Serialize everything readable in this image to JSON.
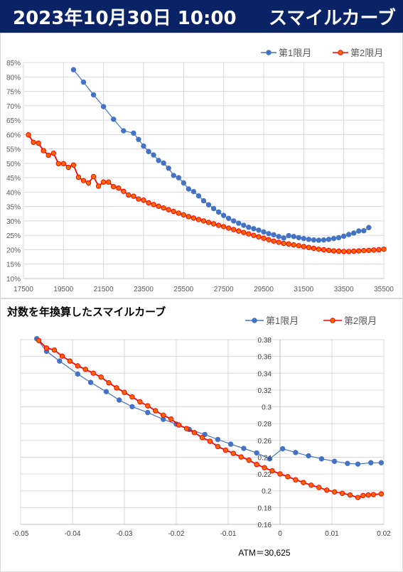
{
  "header": {
    "datetime": "2023年10月30日 10:00",
    "title": "スマイルカーブ"
  },
  "colors": {
    "header_bg": "#0a2366",
    "series1": "#4472c4",
    "series2": "#ff0000",
    "series2_fill": "#ff6a00"
  },
  "chart_data": [
    {
      "type": "line",
      "title": "",
      "xlabel": "",
      "ylabel": "",
      "xlim": [
        17500,
        35500
      ],
      "ylim": [
        10,
        85
      ],
      "x_ticks": [
        "17500",
        "19500",
        "21500",
        "23500",
        "25500",
        "27500",
        "29500",
        "31500",
        "33500",
        "35500"
      ],
      "y_ticks": [
        "10%",
        "15%",
        "20%",
        "25%",
        "30%",
        "35%",
        "40%",
        "45%",
        "50%",
        "55%",
        "60%",
        "65%",
        "70%",
        "75%",
        "80%",
        "85%"
      ],
      "grid": true,
      "legend": "top-right",
      "series": [
        {
          "name": "第1限月",
          "points": [
            [
              20000,
              82.5
            ],
            [
              20500,
              78.2
            ],
            [
              21000,
              73.8
            ],
            [
              21500,
              69.7
            ],
            [
              22000,
              65.3
            ],
            [
              22500,
              61.3
            ],
            [
              23000,
              60.5
            ],
            [
              23250,
              58.3
            ],
            [
              23500,
              56.0
            ],
            [
              23750,
              54.1
            ],
            [
              24000,
              52.9
            ],
            [
              24250,
              51.0
            ],
            [
              24500,
              50.1
            ],
            [
              24750,
              48.3
            ],
            [
              25000,
              45.8
            ],
            [
              25250,
              45.0
            ],
            [
              25500,
              43.2
            ],
            [
              25750,
              41.1
            ],
            [
              26000,
              40.2
            ],
            [
              26250,
              38.7
            ],
            [
              26500,
              37.0
            ],
            [
              26750,
              35.6
            ],
            [
              27000,
              34.3
            ],
            [
              27250,
              33.1
            ],
            [
              27500,
              31.9
            ],
            [
              27750,
              30.9
            ],
            [
              28000,
              30.0
            ],
            [
              28250,
              29.2
            ],
            [
              28500,
              28.5
            ],
            [
              28750,
              27.8
            ],
            [
              29000,
              27.3
            ],
            [
              29250,
              26.8
            ],
            [
              29500,
              26.2
            ],
            [
              29750,
              25.6
            ],
            [
              30000,
              25.2
            ],
            [
              30250,
              24.6
            ],
            [
              30500,
              24.1
            ],
            [
              30750,
              24.9
            ],
            [
              31000,
              24.6
            ],
            [
              31250,
              24.2
            ],
            [
              31500,
              23.9
            ],
            [
              31750,
              23.6
            ],
            [
              32000,
              23.4
            ],
            [
              32250,
              23.3
            ],
            [
              32500,
              23.4
            ],
            [
              32750,
              23.6
            ],
            [
              33000,
              23.9
            ],
            [
              33250,
              24.2
            ],
            [
              33500,
              24.7
            ],
            [
              33750,
              25.3
            ],
            [
              34000,
              25.8
            ],
            [
              34250,
              26.5
            ],
            [
              34500,
              26.6
            ],
            [
              34750,
              27.7
            ]
          ]
        },
        {
          "name": "第2限月",
          "points": [
            [
              17750,
              59.9
            ],
            [
              18000,
              57.3
            ],
            [
              18250,
              57.0
            ],
            [
              18500,
              54.4
            ],
            [
              18750,
              52.8
            ],
            [
              19000,
              53.5
            ],
            [
              19250,
              49.9
            ],
            [
              19500,
              49.9
            ],
            [
              19750,
              48.6
            ],
            [
              20000,
              49.4
            ],
            [
              20250,
              45.2
            ],
            [
              20500,
              44.0
            ],
            [
              20750,
              43.2
            ],
            [
              21000,
              45.4
            ],
            [
              21250,
              42.1
            ],
            [
              21500,
              43.5
            ],
            [
              21750,
              43.5
            ],
            [
              22000,
              41.9
            ],
            [
              22250,
              41.4
            ],
            [
              22500,
              40.3
            ],
            [
              22750,
              39.0
            ],
            [
              23000,
              38.6
            ],
            [
              23250,
              37.6
            ],
            [
              23500,
              37.2
            ],
            [
              23750,
              36.3
            ],
            [
              24000,
              35.7
            ],
            [
              24250,
              35.1
            ],
            [
              24500,
              34.5
            ],
            [
              24750,
              33.9
            ],
            [
              25000,
              33.3
            ],
            [
              25250,
              32.7
            ],
            [
              25500,
              32.1
            ],
            [
              25750,
              31.5
            ],
            [
              26000,
              31.0
            ],
            [
              26250,
              30.5
            ],
            [
              26500,
              30.0
            ],
            [
              26750,
              29.5
            ],
            [
              27000,
              29.0
            ],
            [
              27250,
              28.5
            ],
            [
              27500,
              28.0
            ],
            [
              27750,
              27.5
            ],
            [
              28000,
              27.0
            ],
            [
              28250,
              26.5
            ],
            [
              28500,
              26.0
            ],
            [
              28750,
              25.5
            ],
            [
              29000,
              25.0
            ],
            [
              29250,
              24.5
            ],
            [
              29500,
              24.0
            ],
            [
              29750,
              23.5
            ],
            [
              30000,
              23.0
            ],
            [
              30250,
              22.6
            ],
            [
              30500,
              22.2
            ],
            [
              30750,
              22.0
            ],
            [
              31000,
              21.7
            ],
            [
              31250,
              21.4
            ],
            [
              31500,
              21.1
            ],
            [
              31750,
              20.8
            ],
            [
              32000,
              20.5
            ],
            [
              32250,
              20.2
            ],
            [
              32500,
              20.0
            ],
            [
              32750,
              19.8
            ],
            [
              33000,
              19.6
            ],
            [
              33250,
              19.5
            ],
            [
              33500,
              19.4
            ],
            [
              33750,
              19.4
            ],
            [
              34000,
              19.5
            ],
            [
              34250,
              19.6
            ],
            [
              34500,
              19.7
            ],
            [
              34750,
              19.8
            ],
            [
              35000,
              19.9
            ],
            [
              35250,
              20.0
            ],
            [
              35500,
              20.2
            ]
          ]
        }
      ]
    },
    {
      "type": "line",
      "title": "対数を年換算したスマイルカーブ",
      "xlabel": "",
      "ylabel": "",
      "xlim": [
        -0.05,
        0.02
      ],
      "ylim": [
        0.16,
        0.38
      ],
      "x_ticks": [
        "-0.05",
        "-0.04",
        "-0.03",
        "-0.02",
        "-0.01",
        "0",
        "0.01",
        "0.02"
      ],
      "y_ticks": [
        "0.16",
        "0.18",
        "0.2",
        "0.22",
        "0.24",
        "0.26",
        "0.28",
        "0.3",
        "0.32",
        "0.34",
        "0.36",
        "0.38"
      ],
      "y_axis_at_x": 0,
      "grid": true,
      "legend": "top-right",
      "annotation": "ATM＝30,625",
      "series": [
        {
          "name": "第1限月",
          "points": [
            [
              -0.0469,
              0.3812
            ],
            [
              -0.045,
              0.3661
            ],
            [
              -0.0425,
              0.3545
            ],
            [
              -0.039,
              0.3391
            ],
            [
              -0.0365,
              0.3291
            ],
            [
              -0.0335,
              0.3181
            ],
            [
              -0.031,
              0.3081
            ],
            [
              -0.0285,
              0.3002
            ],
            [
              -0.0255,
              0.2932
            ],
            [
              -0.0225,
              0.2851
            ],
            [
              -0.02,
              0.2795
            ],
            [
              -0.0175,
              0.2731
            ],
            [
              -0.0145,
              0.2671
            ],
            [
              -0.012,
              0.2611
            ],
            [
              -0.0095,
              0.2555
            ],
            [
              -0.007,
              0.2505
            ],
            [
              -0.0045,
              0.2451
            ],
            [
              -0.002,
              0.2381
            ],
            [
              0.0005,
              0.2501
            ],
            [
              0.003,
              0.2456
            ],
            [
              0.0055,
              0.2416
            ],
            [
              0.008,
              0.2381
            ],
            [
              0.0105,
              0.2351
            ],
            [
              0.013,
              0.2326
            ],
            [
              0.015,
              0.2318
            ],
            [
              0.0175,
              0.2334
            ],
            [
              0.0195,
              0.2334
            ]
          ]
        },
        {
          "name": "第2限月",
          "points": [
            [
              -0.0465,
              0.379
            ],
            [
              -0.045,
              0.37
            ],
            [
              -0.0435,
              0.3676
            ],
            [
              -0.042,
              0.3604
            ],
            [
              -0.0405,
              0.3545
            ],
            [
              -0.039,
              0.3488
            ],
            [
              -0.0375,
              0.3446
            ],
            [
              -0.036,
              0.3401
            ],
            [
              -0.0345,
              0.3354
            ],
            [
              -0.033,
              0.3286
            ],
            [
              -0.0315,
              0.3226
            ],
            [
              -0.03,
              0.3172
            ],
            [
              -0.0285,
              0.3118
            ],
            [
              -0.027,
              0.306
            ],
            [
              -0.0255,
              0.3012
            ],
            [
              -0.024,
              0.2953
            ],
            [
              -0.0225,
              0.29
            ],
            [
              -0.021,
              0.2855
            ],
            [
              -0.0195,
              0.2784
            ],
            [
              -0.018,
              0.2741
            ],
            [
              -0.0165,
              0.2693
            ],
            [
              -0.015,
              0.2634
            ],
            [
              -0.0135,
              0.259
            ],
            [
              -0.012,
              0.2527
            ],
            [
              -0.0105,
              0.2484
            ],
            [
              -0.009,
              0.2446
            ],
            [
              -0.0075,
              0.2403
            ],
            [
              -0.006,
              0.2366
            ],
            [
              -0.0045,
              0.2313
            ],
            [
              -0.003,
              0.2275
            ],
            [
              -0.0015,
              0.2238
            ],
            [
              0.0,
              0.2201
            ],
            [
              0.0015,
              0.2168
            ],
            [
              0.003,
              0.2131
            ],
            [
              0.0045,
              0.2099
            ],
            [
              0.006,
              0.2067
            ],
            [
              0.0075,
              0.204
            ],
            [
              0.009,
              0.2008
            ],
            [
              0.0105,
              0.1987
            ],
            [
              0.012,
              0.197
            ],
            [
              0.0135,
              0.195
            ],
            [
              0.015,
              0.192
            ],
            [
              0.016,
              0.1944
            ],
            [
              0.017,
              0.195
            ],
            [
              0.018,
              0.1955
            ],
            [
              0.0195,
              0.1963
            ]
          ]
        }
      ]
    }
  ]
}
